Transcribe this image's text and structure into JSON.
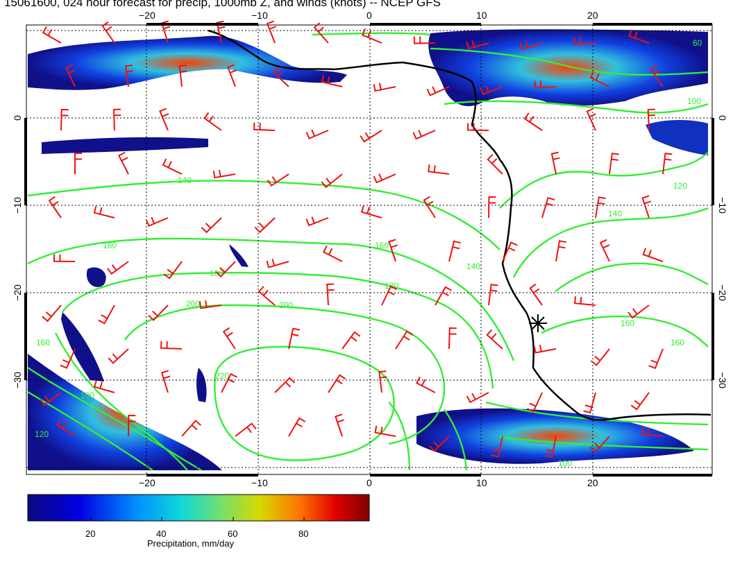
{
  "title": "15061600, 024 hour forecast for precip, 1000mb Z, and winds (knots) -- NCEP GFS",
  "map": {
    "lon_ticks": [
      "−20",
      "−10",
      "0",
      "10",
      "20"
    ],
    "lat_ticks": [
      "0",
      "−10",
      "−20",
      "−30"
    ],
    "contour_labels": [
      "60",
      "100",
      "120",
      "140",
      "160",
      "180",
      "200",
      "220"
    ],
    "station_marker": "station-star-icon",
    "colors": {
      "coastline": "#000000",
      "contours": "#33ee33",
      "wind_barbs": "#ee1111",
      "gridlines": "#000000"
    }
  },
  "colorbar": {
    "label": "Precipitation, mm/day",
    "ticks": [
      "20",
      "40",
      "60",
      "80"
    ],
    "colors": [
      "#00007f",
      "#0000ff",
      "#0080ff",
      "#00e0e0",
      "#80ff80",
      "#e0e000",
      "#ff8000",
      "#ff0000",
      "#7f0000"
    ]
  }
}
